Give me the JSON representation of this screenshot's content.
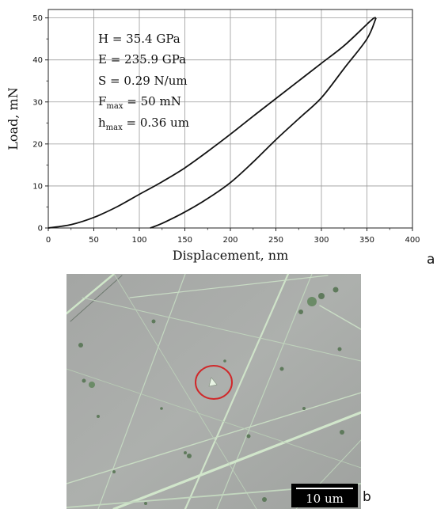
{
  "chart_data": {
    "type": "line",
    "xlabel": "Displacement, nm",
    "ylabel": "Load, mN",
    "xlim": [
      0,
      400
    ],
    "ylim": [
      0,
      52
    ],
    "xticks": [
      "0",
      "50",
      "100",
      "150",
      "200",
      "250",
      "300",
      "350",
      "400"
    ],
    "yticks": [
      "0",
      "10",
      "20",
      "30",
      "40",
      "50"
    ],
    "grid": true,
    "annotations": [
      "H = 35.4 GPa",
      "E = 235.9 GPa",
      "S = 0.29 N/um",
      "Fmax = 50 mN",
      "hmax = 0.36 um"
    ],
    "series": [
      {
        "x": [
          0,
          25,
          50,
          75,
          100,
          125,
          150,
          175,
          200,
          225,
          250,
          275,
          300,
          325,
          350,
          355,
          358,
          360
        ],
        "y": [
          0,
          0.8,
          2.5,
          5,
          8,
          11,
          14.3,
          18.2,
          22.3,
          26.6,
          30.8,
          35,
          39.2,
          43.4,
          48.5,
          49.5,
          50,
          50
        ]
      },
      {
        "x": [
          360,
          350,
          325,
          300,
          275,
          250,
          225,
          200,
          175,
          150,
          125,
          112
        ],
        "y": [
          50,
          45,
          38,
          31,
          26,
          21,
          15.7,
          10.8,
          7,
          3.8,
          1.1,
          0
        ]
      }
    ],
    "line_color": "#111111"
  },
  "panel_labels": {
    "a": "a",
    "b": "b"
  },
  "micrograph": {
    "scale_bar_label": "10 um",
    "marker_color": "#d0282a",
    "background_color": "#a9acaa"
  }
}
